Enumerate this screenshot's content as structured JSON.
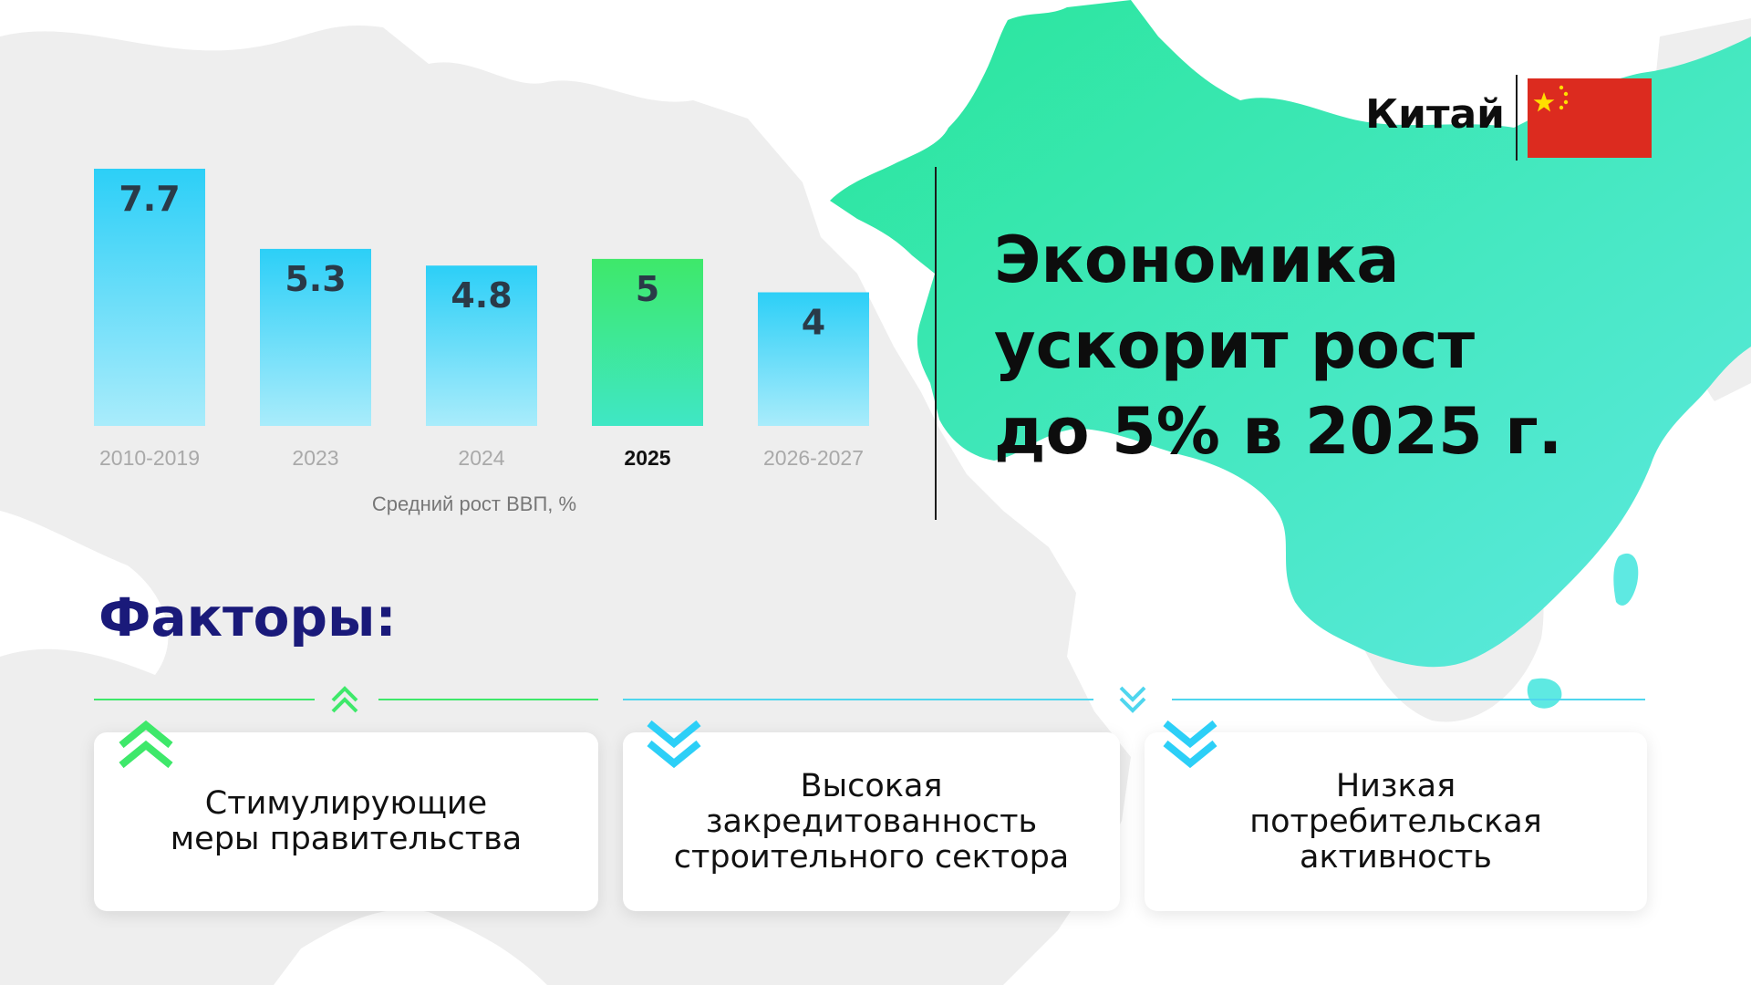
{
  "country": {
    "name": "Китай",
    "flag": "china-flag"
  },
  "headline": {
    "line1": "Экономика",
    "line2": "ускорит рост",
    "line3": "до 5% в 2025 г."
  },
  "chart_data": {
    "type": "bar",
    "categories": [
      "2010-2019",
      "2023",
      "2024",
      "2025",
      "2026-2027"
    ],
    "values": [
      7.7,
      5.3,
      4.8,
      5,
      4
    ],
    "value_labels": [
      "7.7",
      "5.3",
      "4.8",
      "5",
      "4"
    ],
    "highlight": "2025",
    "xlabel": "Средний рост ВВП, %",
    "ylim": [
      0,
      8
    ],
    "grid": false,
    "colors": {
      "default": "#2ccff7",
      "highlight": "#3ee86a"
    }
  },
  "factors": {
    "title": "Факторы:",
    "groups": [
      {
        "direction": "up",
        "icon": "double-chevron-up-icon",
        "color": "#3ee86a"
      },
      {
        "direction": "down",
        "icon": "double-chevron-down-icon",
        "color": "#4fd6ee"
      }
    ],
    "items": [
      {
        "text": "Стимулирующие\nмеры правительства",
        "direction": "up",
        "icon": "double-chevron-up-icon"
      },
      {
        "text": "Высокая\nзакредитованность\nстроительного сектора",
        "direction": "down",
        "icon": "double-chevron-down-icon"
      },
      {
        "text": "Низкая\nпотребительская\nактивность",
        "direction": "down",
        "icon": "double-chevron-down-icon"
      }
    ]
  },
  "colors": {
    "title": "#1a1a7a",
    "map_land": "#eeeeee",
    "china_gradient": [
      "#28e69a",
      "#5ee9e2"
    ],
    "up": "#3ee86a",
    "down": "#2ccff7"
  }
}
